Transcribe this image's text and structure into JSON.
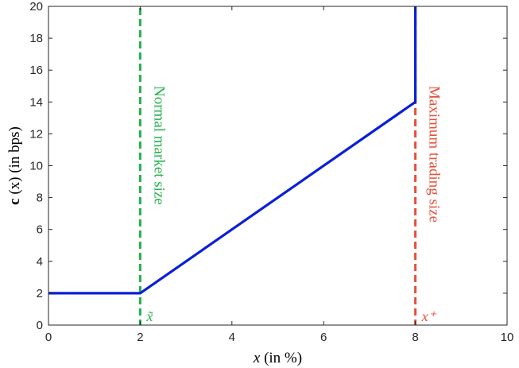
{
  "chart_data": {
    "type": "line",
    "xlabel_var": "x",
    "xlabel_rest": "(in %)",
    "ylabel_bold": "c",
    "ylabel_rest": "(x) (in bps)",
    "xlim": [
      0,
      10
    ],
    "ylim": [
      0,
      20
    ],
    "x_ticks": [
      0,
      2,
      4,
      6,
      8,
      10
    ],
    "y_ticks": [
      0,
      2,
      4,
      6,
      8,
      10,
      12,
      14,
      16,
      18,
      20
    ],
    "grid": false,
    "series": [
      {
        "color": "#0a1fd8",
        "points": [
          [
            0,
            2
          ],
          [
            2,
            2
          ],
          [
            8,
            14
          ],
          [
            8,
            20
          ]
        ]
      }
    ],
    "vlines": [
      {
        "x": 2,
        "color": "#22b24c",
        "style": "dashed",
        "label": "Normal market size",
        "marker": "x̃"
      },
      {
        "x": 8,
        "color": "#e8503a",
        "style": "dashed",
        "label": "Maximum trading size",
        "marker": "x⁺"
      }
    ]
  }
}
